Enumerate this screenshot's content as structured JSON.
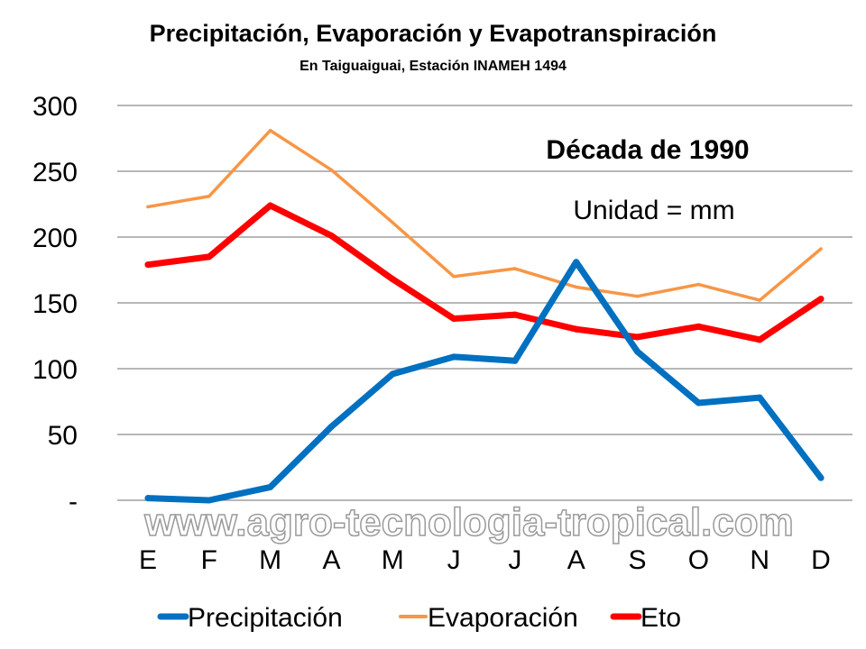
{
  "chart_data": {
    "type": "line",
    "title": "Precipitación, Evaporación y Evapotranspiración",
    "subtitle": "En Taiguaiguai, Estación INAMEH 1494",
    "annotations": [
      "Década de 1990",
      "Unidad = mm"
    ],
    "watermark": "www.agro-tecnologia-tropical.com",
    "categories": [
      "E",
      "F",
      "M",
      "A",
      "M",
      "J",
      "J",
      "A",
      "S",
      "O",
      "N",
      "D"
    ],
    "ylim": [
      0,
      300
    ],
    "yticks": [
      0,
      50,
      100,
      150,
      200,
      250,
      300
    ],
    "ytick_labels": [
      "-",
      "50",
      "100",
      "150",
      "200",
      "250",
      "300"
    ],
    "grid": true,
    "legend_position": "bottom",
    "series": [
      {
        "name": "Precipitación",
        "color": "#0070C0",
        "values": [
          1.6,
          0,
          10,
          56,
          96,
          109,
          106,
          181,
          113,
          74,
          78,
          17
        ]
      },
      {
        "name": "Evaporación",
        "color": "#F79646",
        "values": [
          223,
          231,
          281,
          251,
          211,
          170,
          176,
          162,
          155,
          164,
          152,
          191
        ]
      },
      {
        "name": "Eto",
        "color": "#FF0000",
        "values": [
          179,
          185,
          224,
          201,
          168,
          138,
          141,
          130,
          124,
          132,
          122,
          153
        ]
      }
    ]
  }
}
